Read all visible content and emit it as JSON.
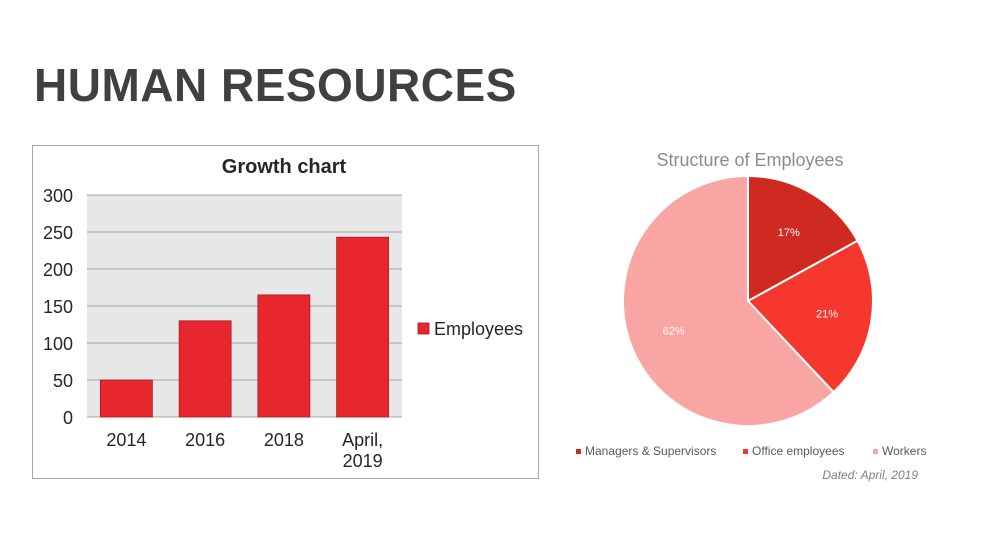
{
  "slide": {
    "title": "HUMAN RESOURCES"
  },
  "chart_data": [
    {
      "type": "bar",
      "title": "Growth chart",
      "categories": [
        "2014",
        "2016",
        "2018",
        "April, 2019"
      ],
      "category_lines": [
        [
          "2014"
        ],
        [
          "2016"
        ],
        [
          "2018"
        ],
        [
          "April,",
          "2019"
        ]
      ],
      "series": [
        {
          "name": "Employees",
          "values": [
            50,
            130,
            165,
            243
          ],
          "color": "#e8262e"
        }
      ],
      "yticks": [
        "0",
        "50",
        "100",
        "150",
        "200",
        "250",
        "300"
      ],
      "ylim": [
        0,
        300
      ],
      "grid": true,
      "plot_background": "#e7e7e7",
      "legend_position": "right"
    },
    {
      "type": "pie",
      "title": "Structure of Employees",
      "slices": [
        {
          "label": "Managers & Supervisors",
          "value": 17,
          "display": "17%",
          "color": "#cf2a22"
        },
        {
          "label": "Office employees",
          "value": 21,
          "display": "21%",
          "color": "#f5372e"
        },
        {
          "label": "Workers",
          "value": 62,
          "display": "62%",
          "color": "#f8a5a3"
        }
      ],
      "legend_position": "bottom",
      "note": "Dated: April, 2019"
    }
  ]
}
